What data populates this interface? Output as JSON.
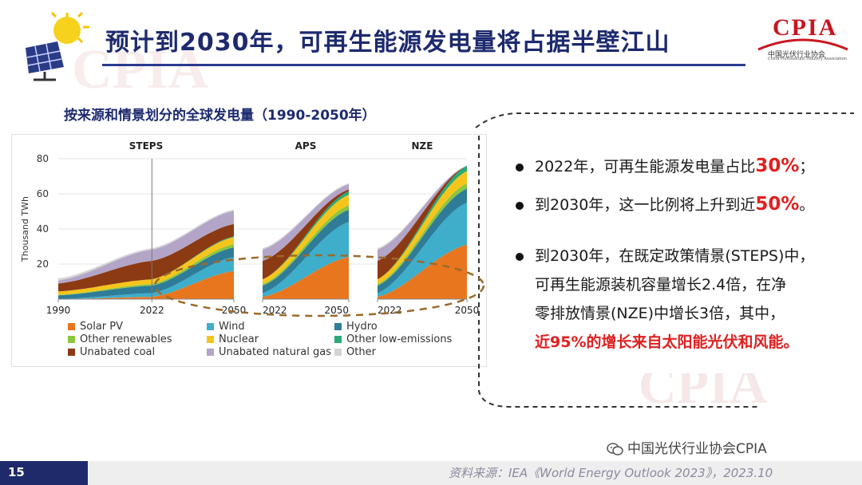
{
  "header": {
    "title": "预计到2030年，可再生能源发电量将占据半壁江山",
    "logo_text": "CPIA",
    "logo_subtitle": "中国光伏行业协会",
    "logo_subtitle_en": "China Photovoltaic Industry Association",
    "watermark": "CPIA"
  },
  "chart_title": "按来源和情景划分的全球发电量（1990-2050年）",
  "chart_data": {
    "type": "area",
    "title": "按来源和情景划分的全球发电量（1990-2050年）",
    "ylabel": "Thousand TWh",
    "ylim": [
      0,
      80
    ],
    "yticks": [
      "80",
      "60",
      "40",
      "20"
    ],
    "panels": [
      {
        "name": "STEPS",
        "x": [
          1990,
          2022,
          2050
        ],
        "xticks": [
          "1990",
          "2022",
          "2050"
        ],
        "series": [
          {
            "name": "Solar PV",
            "values": [
              0,
              1.3,
              16
            ]
          },
          {
            "name": "Wind",
            "values": [
              0,
              2.1,
              8
            ]
          },
          {
            "name": "Hydro",
            "values": [
              2.2,
              4.3,
              5.5
            ]
          },
          {
            "name": "Other renewables",
            "values": [
              0.2,
              0.9,
              1.8
            ]
          },
          {
            "name": "Nuclear",
            "values": [
              2.0,
              2.7,
              4
            ]
          },
          {
            "name": "Other low-emissions",
            "values": [
              0,
              0,
              0.5
            ]
          },
          {
            "name": "Unabated coal",
            "values": [
              4.5,
              10.5,
              7
            ]
          },
          {
            "name": "Unabated natural gas",
            "values": [
              1.7,
              6.4,
              7.5
            ]
          },
          {
            "name": "Other",
            "values": [
              1.2,
              0.8,
              0.7
            ]
          }
        ]
      },
      {
        "name": "APS",
        "x": [
          2022,
          2050
        ],
        "xticks": [
          "2022",
          "2050"
        ],
        "series": [
          {
            "name": "Solar PV",
            "values": [
              1.3,
              24
            ]
          },
          {
            "name": "Wind",
            "values": [
              2.1,
              20
            ]
          },
          {
            "name": "Hydro",
            "values": [
              4.3,
              7
            ]
          },
          {
            "name": "Other renewables",
            "values": [
              0.9,
              2.5
            ]
          },
          {
            "name": "Nuclear",
            "values": [
              2.7,
              6
            ]
          },
          {
            "name": "Other low-emissions",
            "values": [
              0,
              2
            ]
          },
          {
            "name": "Unabated coal",
            "values": [
              10.5,
              1
            ]
          },
          {
            "name": "Unabated natural gas",
            "values": [
              6.4,
              3
            ]
          },
          {
            "name": "Other",
            "values": [
              0.8,
              0.5
            ]
          }
        ]
      },
      {
        "name": "NZE",
        "x": [
          2022,
          2050
        ],
        "xticks": [
          "2022",
          "2050"
        ],
        "series": [
          {
            "name": "Solar PV",
            "values": [
              1.3,
              31
            ]
          },
          {
            "name": "Wind",
            "values": [
              2.1,
              24
            ]
          },
          {
            "name": "Hydro",
            "values": [
              4.3,
              8
            ]
          },
          {
            "name": "Other renewables",
            "values": [
              0.9,
              3
            ]
          },
          {
            "name": "Nuclear",
            "values": [
              2.7,
              7
            ]
          },
          {
            "name": "Other low-emissions",
            "values": [
              0,
              3
            ]
          },
          {
            "name": "Unabated coal",
            "values": [
              10.5,
              0
            ]
          },
          {
            "name": "Unabated natural gas",
            "values": [
              6.4,
              0
            ]
          },
          {
            "name": "Other",
            "values": [
              0.8,
              0
            ]
          }
        ]
      }
    ],
    "legend": [
      {
        "name": "Solar PV",
        "color": "#e8761e"
      },
      {
        "name": "Wind",
        "color": "#3eaecb"
      },
      {
        "name": "Hydro",
        "color": "#2f7c99"
      },
      {
        "name": "Other renewables",
        "color": "#8cc63f"
      },
      {
        "name": "Nuclear",
        "color": "#f5c51c"
      },
      {
        "name": "Other low-emissions",
        "color": "#2aa876"
      },
      {
        "name": "Unabated coal",
        "color": "#8b3a14"
      },
      {
        "name": "Unabated natural gas",
        "color": "#b3a5c8"
      },
      {
        "name": "Other",
        "color": "#d3d3d3"
      }
    ]
  },
  "bullets": [
    {
      "before": "2022年，可再生能源发电量占比",
      "highlight": "30%",
      "after": "；"
    },
    {
      "before": "到2030年，这一比例将上升到近",
      "highlight": "50%",
      "after": "。"
    },
    {
      "lines": [
        "到2030年，在既定政策情景(STEPS)中，",
        "可再生能源装机容量增长2.4倍，在净",
        "零排放情景(NZE)中增长3倍，其中，"
      ],
      "red_line": "近95%的增长来自太阳能光伏和风能。"
    }
  ],
  "footer": {
    "page_number": "15",
    "source": "资料来源：IEA《World Energy Outlook 2023》，2023.10",
    "wechat": "中国光伏行业协会CPIA",
    "wechat_icon": "wechat-icon"
  }
}
